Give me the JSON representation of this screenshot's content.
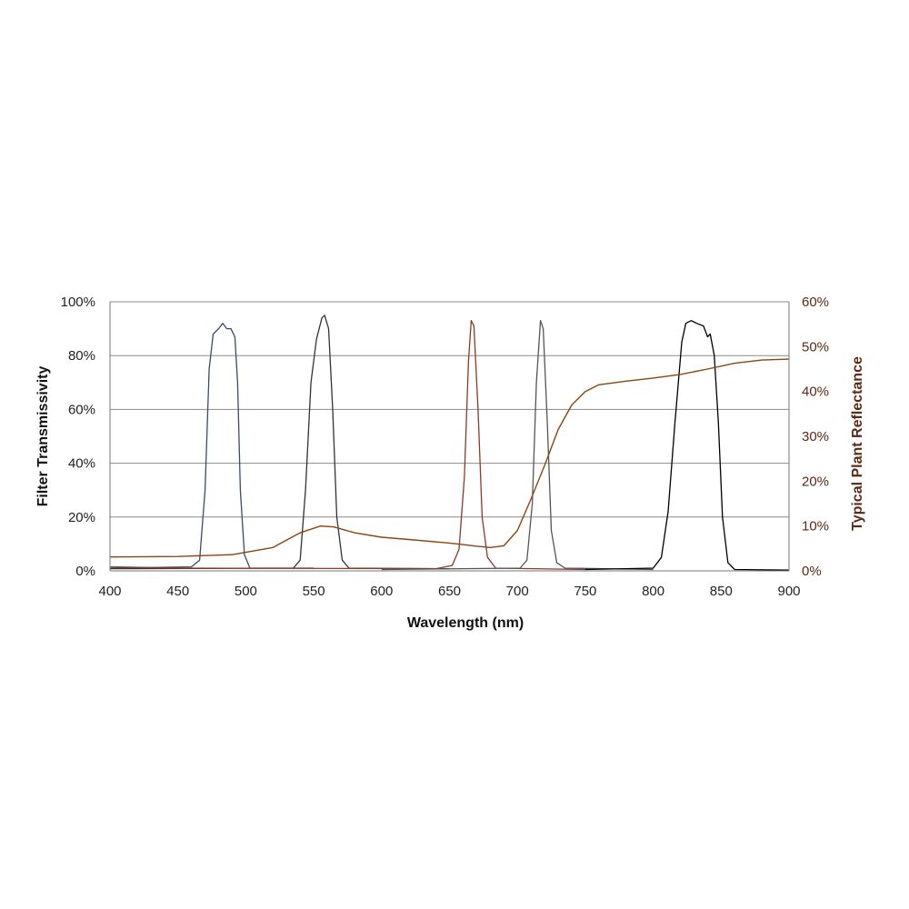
{
  "chart_data": {
    "type": "line",
    "xlabel": "Wavelength (nm)",
    "ylabel": "Filter Transmissivity",
    "y2label": "Typical Plant Reflectance",
    "xlim": [
      400,
      900
    ],
    "ylim": [
      0,
      100
    ],
    "y2lim": [
      0,
      60
    ],
    "xticks": [
      "400",
      "450",
      "500",
      "550",
      "600",
      "650",
      "700",
      "750",
      "800",
      "850",
      "900"
    ],
    "yticks": [
      "0%",
      "20%",
      "40%",
      "60%",
      "80%",
      "100%"
    ],
    "y2ticks": [
      "0%",
      "10%",
      "20%",
      "30%",
      "40%",
      "50%",
      "60%"
    ],
    "grid": true,
    "series": [
      {
        "axis": "left",
        "color": "#3b4a6b",
        "points": [
          [
            400,
            1
          ],
          [
            460,
            1.5
          ],
          [
            466,
            4
          ],
          [
            470,
            30
          ],
          [
            473,
            75
          ],
          [
            476,
            88
          ],
          [
            480,
            90
          ],
          [
            483,
            92
          ],
          [
            486,
            90
          ],
          [
            489,
            90
          ],
          [
            492,
            87
          ],
          [
            494,
            70
          ],
          [
            496,
            30
          ],
          [
            499,
            6
          ],
          [
            503,
            1
          ],
          [
            550,
            1
          ]
        ]
      },
      {
        "axis": "left",
        "color": "#333333",
        "points": [
          [
            400,
            0.8
          ],
          [
            535,
            1
          ],
          [
            540,
            4
          ],
          [
            544,
            30
          ],
          [
            548,
            70
          ],
          [
            552,
            86
          ],
          [
            556,
            94
          ],
          [
            558,
            95
          ],
          [
            561,
            90
          ],
          [
            564,
            60
          ],
          [
            567,
            20
          ],
          [
            571,
            4
          ],
          [
            576,
            1
          ],
          [
            650,
            0.8
          ]
        ]
      },
      {
        "axis": "left",
        "color": "#8a3a2a",
        "points": [
          [
            400,
            1.5
          ],
          [
            450,
            1
          ],
          [
            640,
            0.8
          ],
          [
            652,
            2
          ],
          [
            657,
            8
          ],
          [
            661,
            35
          ],
          [
            664,
            78
          ],
          [
            666,
            93
          ],
          [
            668,
            91
          ],
          [
            671,
            60
          ],
          [
            674,
            20
          ],
          [
            678,
            5
          ],
          [
            684,
            1
          ],
          [
            750,
            0.5
          ]
        ]
      },
      {
        "axis": "left",
        "color": "#555555",
        "points": [
          [
            600,
            0.5
          ],
          [
            702,
            1
          ],
          [
            707,
            4
          ],
          [
            711,
            25
          ],
          [
            714,
            70
          ],
          [
            717,
            93
          ],
          [
            719,
            90
          ],
          [
            722,
            55
          ],
          [
            725,
            15
          ],
          [
            729,
            3
          ],
          [
            735,
            1
          ],
          [
            800,
            0.5
          ]
        ]
      },
      {
        "axis": "left",
        "color": "#000000",
        "points": [
          [
            750,
            0.5
          ],
          [
            800,
            1
          ],
          [
            806,
            5
          ],
          [
            811,
            22
          ],
          [
            816,
            55
          ],
          [
            821,
            85
          ],
          [
            824,
            92
          ],
          [
            828,
            93
          ],
          [
            832,
            92
          ],
          [
            837,
            91
          ],
          [
            840,
            87
          ],
          [
            842,
            88
          ],
          [
            845,
            80
          ],
          [
            848,
            55
          ],
          [
            851,
            20
          ],
          [
            855,
            3
          ],
          [
            860,
            0.5
          ],
          [
            900,
            0.3
          ]
        ]
      },
      {
        "axis": "right",
        "color": "#8b4513",
        "points": [
          [
            400,
            3.1
          ],
          [
            450,
            3.2
          ],
          [
            490,
            3.6
          ],
          [
            520,
            5.2
          ],
          [
            540,
            8.5
          ],
          [
            555,
            10.0
          ],
          [
            565,
            9.8
          ],
          [
            580,
            8.5
          ],
          [
            600,
            7.5
          ],
          [
            620,
            7.0
          ],
          [
            650,
            6.2
          ],
          [
            670,
            5.5
          ],
          [
            680,
            5.2
          ],
          [
            690,
            5.6
          ],
          [
            700,
            9.0
          ],
          [
            710,
            16.0
          ],
          [
            720,
            23.5
          ],
          [
            730,
            31.5
          ],
          [
            740,
            37.0
          ],
          [
            750,
            40.0
          ],
          [
            760,
            41.5
          ],
          [
            780,
            42.3
          ],
          [
            800,
            43.0
          ],
          [
            820,
            43.8
          ],
          [
            840,
            45.0
          ],
          [
            860,
            46.3
          ],
          [
            880,
            47.0
          ],
          [
            900,
            47.2
          ]
        ]
      }
    ]
  }
}
